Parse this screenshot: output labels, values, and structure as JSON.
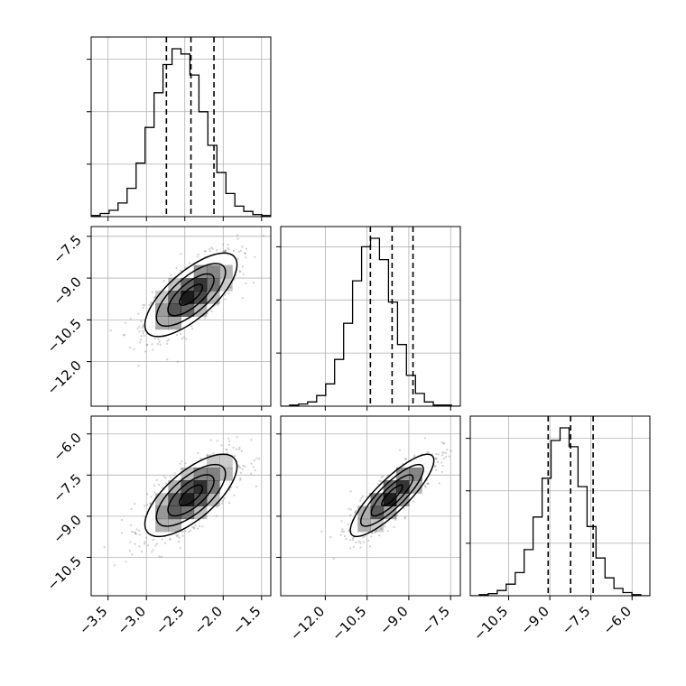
{
  "chart_data": {
    "type": "corner",
    "parameters": [
      {
        "range": [
          -3.72,
          -1.38
        ],
        "ticks": [
          -3.5,
          -3.0,
          -2.5,
          -2.0,
          -1.5
        ],
        "tick_labels": [
          "−3.5",
          "−3.0",
          "−2.5",
          "−2.0",
          "−1.5"
        ],
        "mean": -2.42,
        "std": 0.3,
        "quantiles": [
          -2.74,
          -2.42,
          -2.12
        ],
        "hist_counts": [
          1,
          3,
          6,
          13,
          27,
          51,
          85,
          118,
          145,
          160,
          155,
          135,
          100,
          68,
          42,
          22,
          10,
          5,
          2,
          1
        ]
      },
      {
        "range": [
          -13.6,
          -7.15
        ],
        "ticks": [
          -12.0,
          -10.5,
          -9.0,
          -7.5
        ],
        "tick_labels": [
          "−12.0",
          "−10.5",
          "−9.0",
          "−7.5"
        ],
        "mean": -9.6,
        "std": 0.75,
        "quantiles": [
          -10.38,
          -9.6,
          -8.85
        ],
        "hist_counts": [
          0,
          1,
          2,
          4,
          10,
          21,
          44,
          78,
          118,
          150,
          158,
          138,
          98,
          58,
          29,
          12,
          4,
          1,
          1,
          0
        ]
      },
      {
        "range": [
          -11.9,
          -5.35
        ],
        "ticks": [
          -10.5,
          -9.0,
          -7.5,
          -6.0
        ],
        "tick_labels": [
          "−10.5",
          "−9.0",
          "−7.5",
          "−6.0"
        ],
        "mean": -8.24,
        "std": 0.75,
        "quantiles": [
          -9.06,
          -8.24,
          -7.42
        ],
        "hist_counts": [
          0,
          1,
          2,
          5,
          11,
          22,
          44,
          75,
          112,
          148,
          160,
          142,
          104,
          66,
          36,
          17,
          7,
          3,
          1,
          0
        ]
      }
    ],
    "correlations": {
      "1_0": 0.72,
      "2_0": 0.7,
      "2_1": 0.85
    },
    "contour_levels_sigma": [
      0.5,
      1.0,
      1.5,
      2.0
    ],
    "scatter_points_per_panel": 900,
    "grid": true,
    "colors": {
      "points": "#777777",
      "density": "#000000",
      "lines": "#000000"
    }
  }
}
